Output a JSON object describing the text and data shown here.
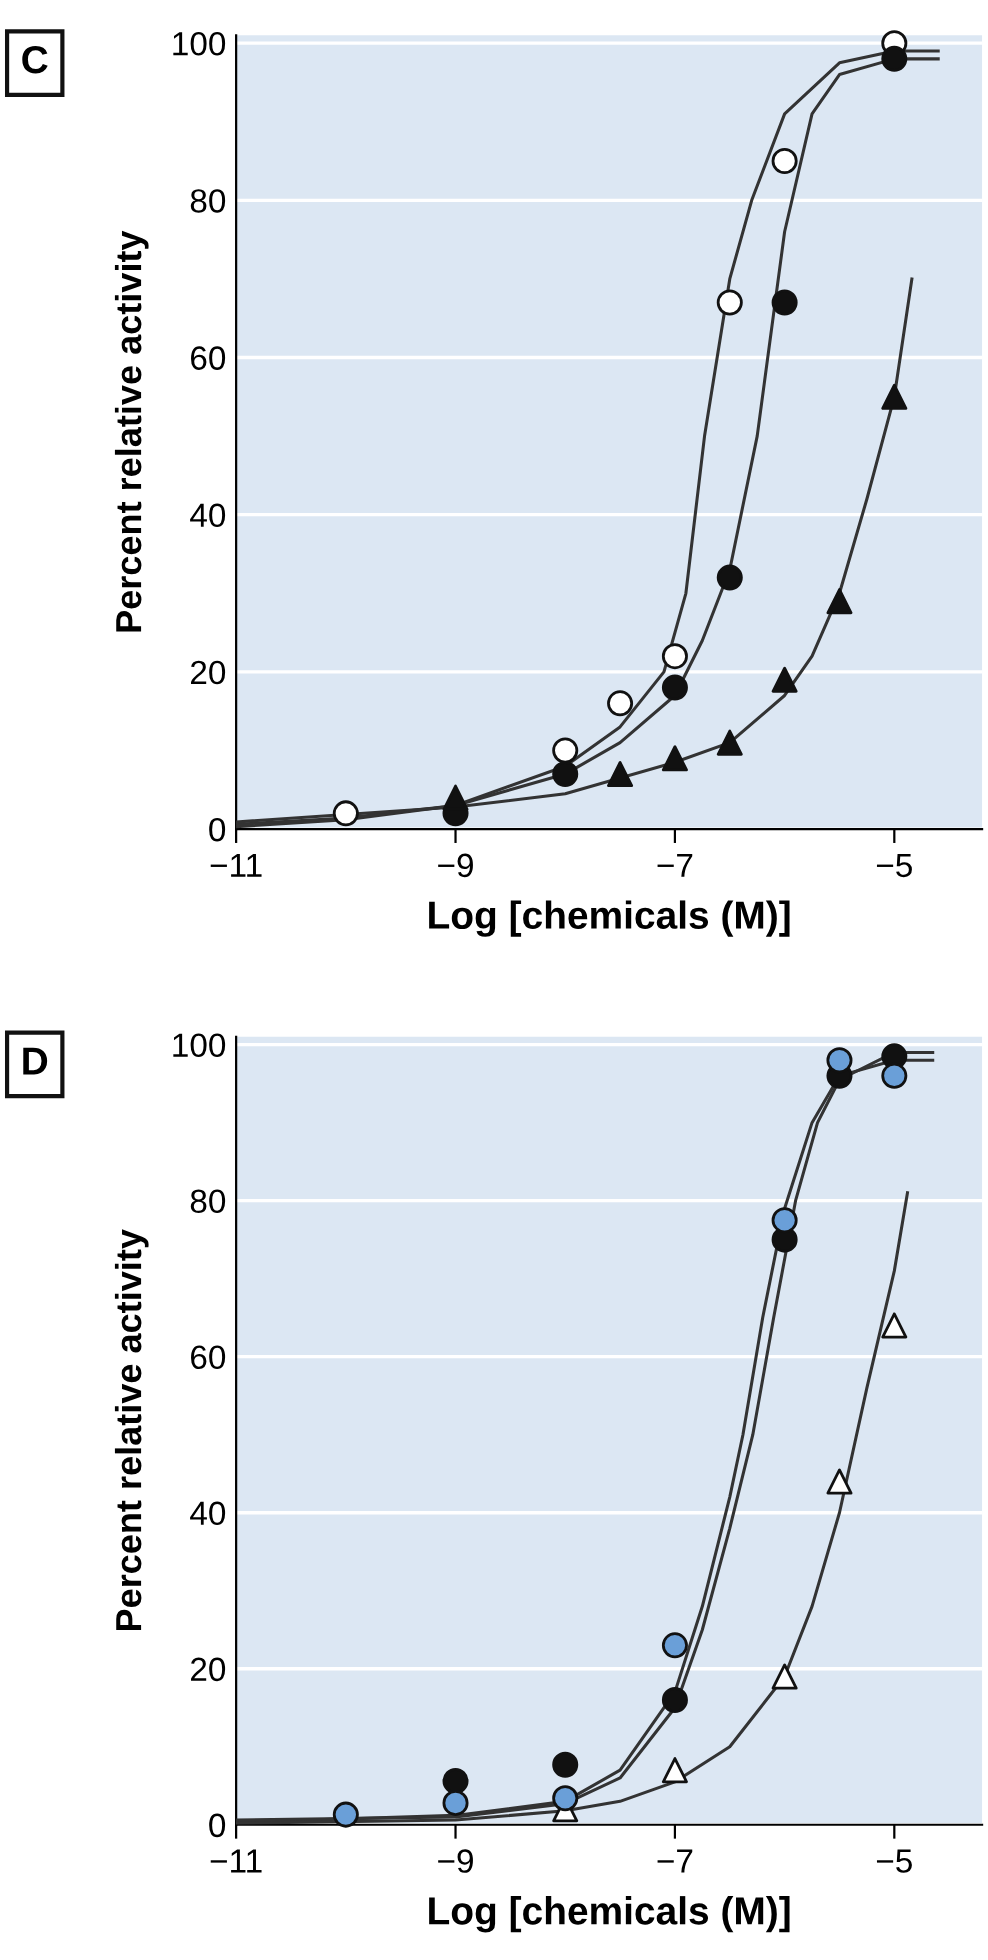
{
  "chart_data": [
    {
      "type": "scatter",
      "title": "C",
      "xlabel": "Log [chemicals (M)]",
      "ylabel": "Percent relative activity",
      "xlim": [
        -11,
        -4.2
      ],
      "ylim": [
        0,
        101
      ],
      "xticks": [
        {
          "value": -11,
          "label": "−11"
        },
        {
          "value": -9,
          "label": "−9"
        },
        {
          "value": -7,
          "label": "−7"
        },
        {
          "value": -5,
          "label": "−5"
        }
      ],
      "yticks": [
        0,
        20,
        40,
        60,
        80,
        100
      ],
      "grid": "y",
      "series": [
        {
          "marker": "circle",
          "color": "#ffffff",
          "x": [
            -10,
            -8,
            -7.5,
            -7,
            -6.5,
            -6,
            -5
          ],
          "values": [
            2,
            10,
            16,
            22,
            67,
            85,
            100
          ]
        },
        {
          "marker": "circle",
          "color": "#111111",
          "x": [
            -9,
            -8,
            -7,
            -6.5,
            -6,
            -5
          ],
          "values": [
            2,
            7,
            18,
            32,
            67,
            98
          ]
        },
        {
          "marker": "triangle",
          "color": "#111111",
          "x": [
            -9,
            -7.5,
            -7,
            -6.5,
            -6,
            -5.5,
            -5
          ],
          "values": [
            4,
            7,
            9,
            11,
            19,
            29,
            55
          ]
        },
        {
          "type": "line",
          "color": "#333333",
          "x": [
            -11,
            -10,
            -9,
            -8,
            -7.5,
            -7.1,
            -6.9,
            -6.73,
            -6.5,
            -6.3,
            -6,
            -5.5,
            -5,
            -4.6
          ],
          "values": [
            0.3,
            1.2,
            3,
            8,
            13,
            20,
            30,
            50,
            70,
            80,
            91,
            97.5,
            99,
            99
          ]
        },
        {
          "type": "line",
          "color": "#333333",
          "x": [
            -11,
            -10,
            -9,
            -8,
            -7.5,
            -7,
            -6.75,
            -6.5,
            -6.25,
            -6,
            -5.75,
            -5.5,
            -5,
            -4.6
          ],
          "values": [
            0.6,
            1.4,
            3,
            7,
            11,
            17,
            24,
            33,
            50,
            76,
            91,
            96,
            98,
            98
          ]
        },
        {
          "type": "line",
          "color": "#333333",
          "x": [
            -11,
            -9,
            -8,
            -7,
            -6.5,
            -6,
            -5.75,
            -5.5,
            -5.25,
            -5,
            -4.84
          ],
          "values": [
            0.9,
            2.8,
            4.5,
            8.5,
            11,
            17,
            22,
            30,
            42,
            55,
            70
          ]
        }
      ]
    },
    {
      "type": "scatter",
      "title": "D",
      "xlabel": "Log [chemicals (M)]",
      "ylabel": "Percent relative activity",
      "xlim": [
        -11,
        -4.2
      ],
      "ylim": [
        0,
        101
      ],
      "xticks": [
        {
          "value": -11,
          "label": "−11"
        },
        {
          "value": -9,
          "label": "−9"
        },
        {
          "value": -7,
          "label": "−7"
        },
        {
          "value": -5,
          "label": "−5"
        }
      ],
      "yticks": [
        0,
        20,
        40,
        60,
        80,
        100
      ],
      "grid": "y",
      "series": [
        {
          "type": "line",
          "color": "#333333",
          "x": [
            -11,
            -9,
            -8,
            -7.5,
            -7,
            -6.75,
            -6.5,
            -6.38,
            -6.2,
            -6,
            -5.75,
            -5.5,
            -5,
            -4.65
          ],
          "values": [
            0.3,
            1.2,
            3,
            7,
            17,
            28,
            42,
            50,
            65,
            79,
            90,
            96,
            98,
            98
          ]
        },
        {
          "type": "line",
          "color": "#333333",
          "x": [
            -11,
            -9,
            -8,
            -7.5,
            -7,
            -6.75,
            -6.5,
            -6.29,
            -6.1,
            -5.9,
            -5.7,
            -5.5,
            -5,
            -4.65
          ],
          "values": [
            0.6,
            1,
            2.7,
            6,
            15,
            25,
            38,
            50,
            65,
            80,
            90,
            95.5,
            99,
            99
          ]
        },
        {
          "type": "line",
          "color": "#333333",
          "x": [
            -11,
            -9,
            -8,
            -7.5,
            -7,
            -6.5,
            -6,
            -5.75,
            -5.5,
            -5.25,
            -5,
            -4.88
          ],
          "values": [
            0.2,
            0.6,
            1.8,
            3,
            5.5,
            10,
            19,
            28,
            40,
            56,
            71,
            81
          ]
        },
        {
          "marker": "triangle",
          "color": "#ffffff",
          "x": [
            -8,
            -7,
            -6,
            -5.5,
            -5
          ],
          "values": [
            2,
            7,
            19,
            44,
            64
          ]
        },
        {
          "marker": "circle",
          "color": "#111111",
          "x": [
            -9,
            -8,
            -7,
            -6,
            -5.5,
            -5
          ],
          "values": [
            5.6,
            7.7,
            16,
            75,
            96,
            98.5
          ]
        },
        {
          "marker": "circle",
          "color": "#6a9fd8",
          "x": [
            -10,
            -9,
            -8,
            -7,
            -6,
            -5.5,
            -5
          ],
          "values": [
            1.3,
            2.8,
            3.4,
            23,
            77.5,
            98,
            96
          ]
        }
      ]
    }
  ]
}
